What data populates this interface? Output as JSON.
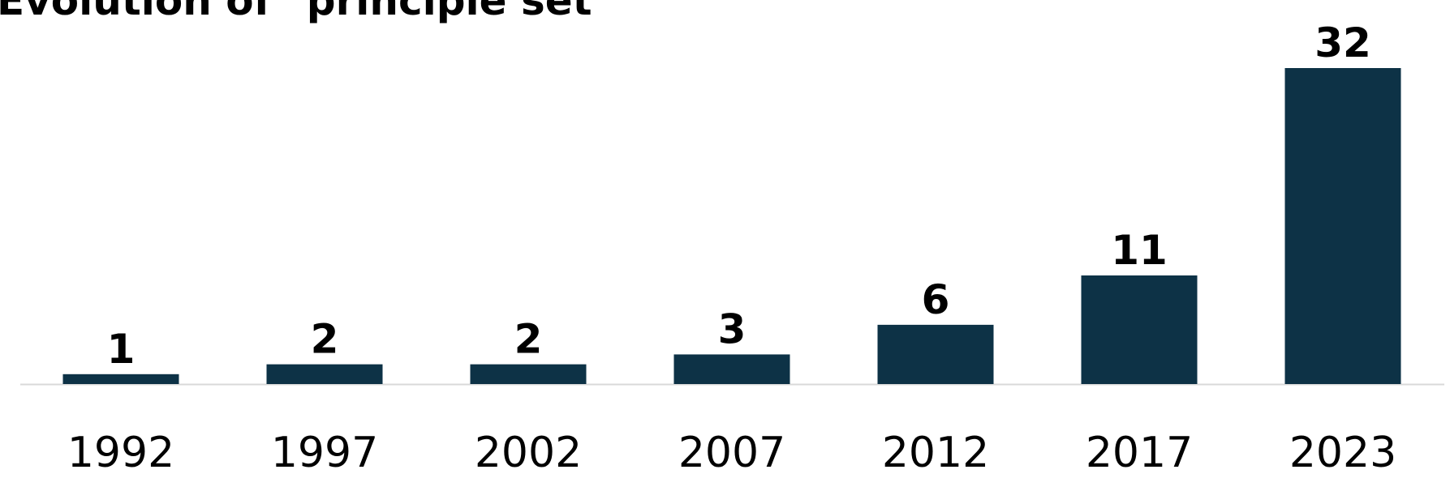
{
  "chart_data": {
    "type": "bar",
    "title": "Evolution of \"principle set\"",
    "categories": [
      "1992",
      "1997",
      "2002",
      "2007",
      "2012",
      "2017",
      "2023"
    ],
    "values": [
      1,
      2,
      2,
      3,
      6,
      11,
      32
    ],
    "color": "#0d3246",
    "ylim": [
      0,
      32
    ]
  }
}
